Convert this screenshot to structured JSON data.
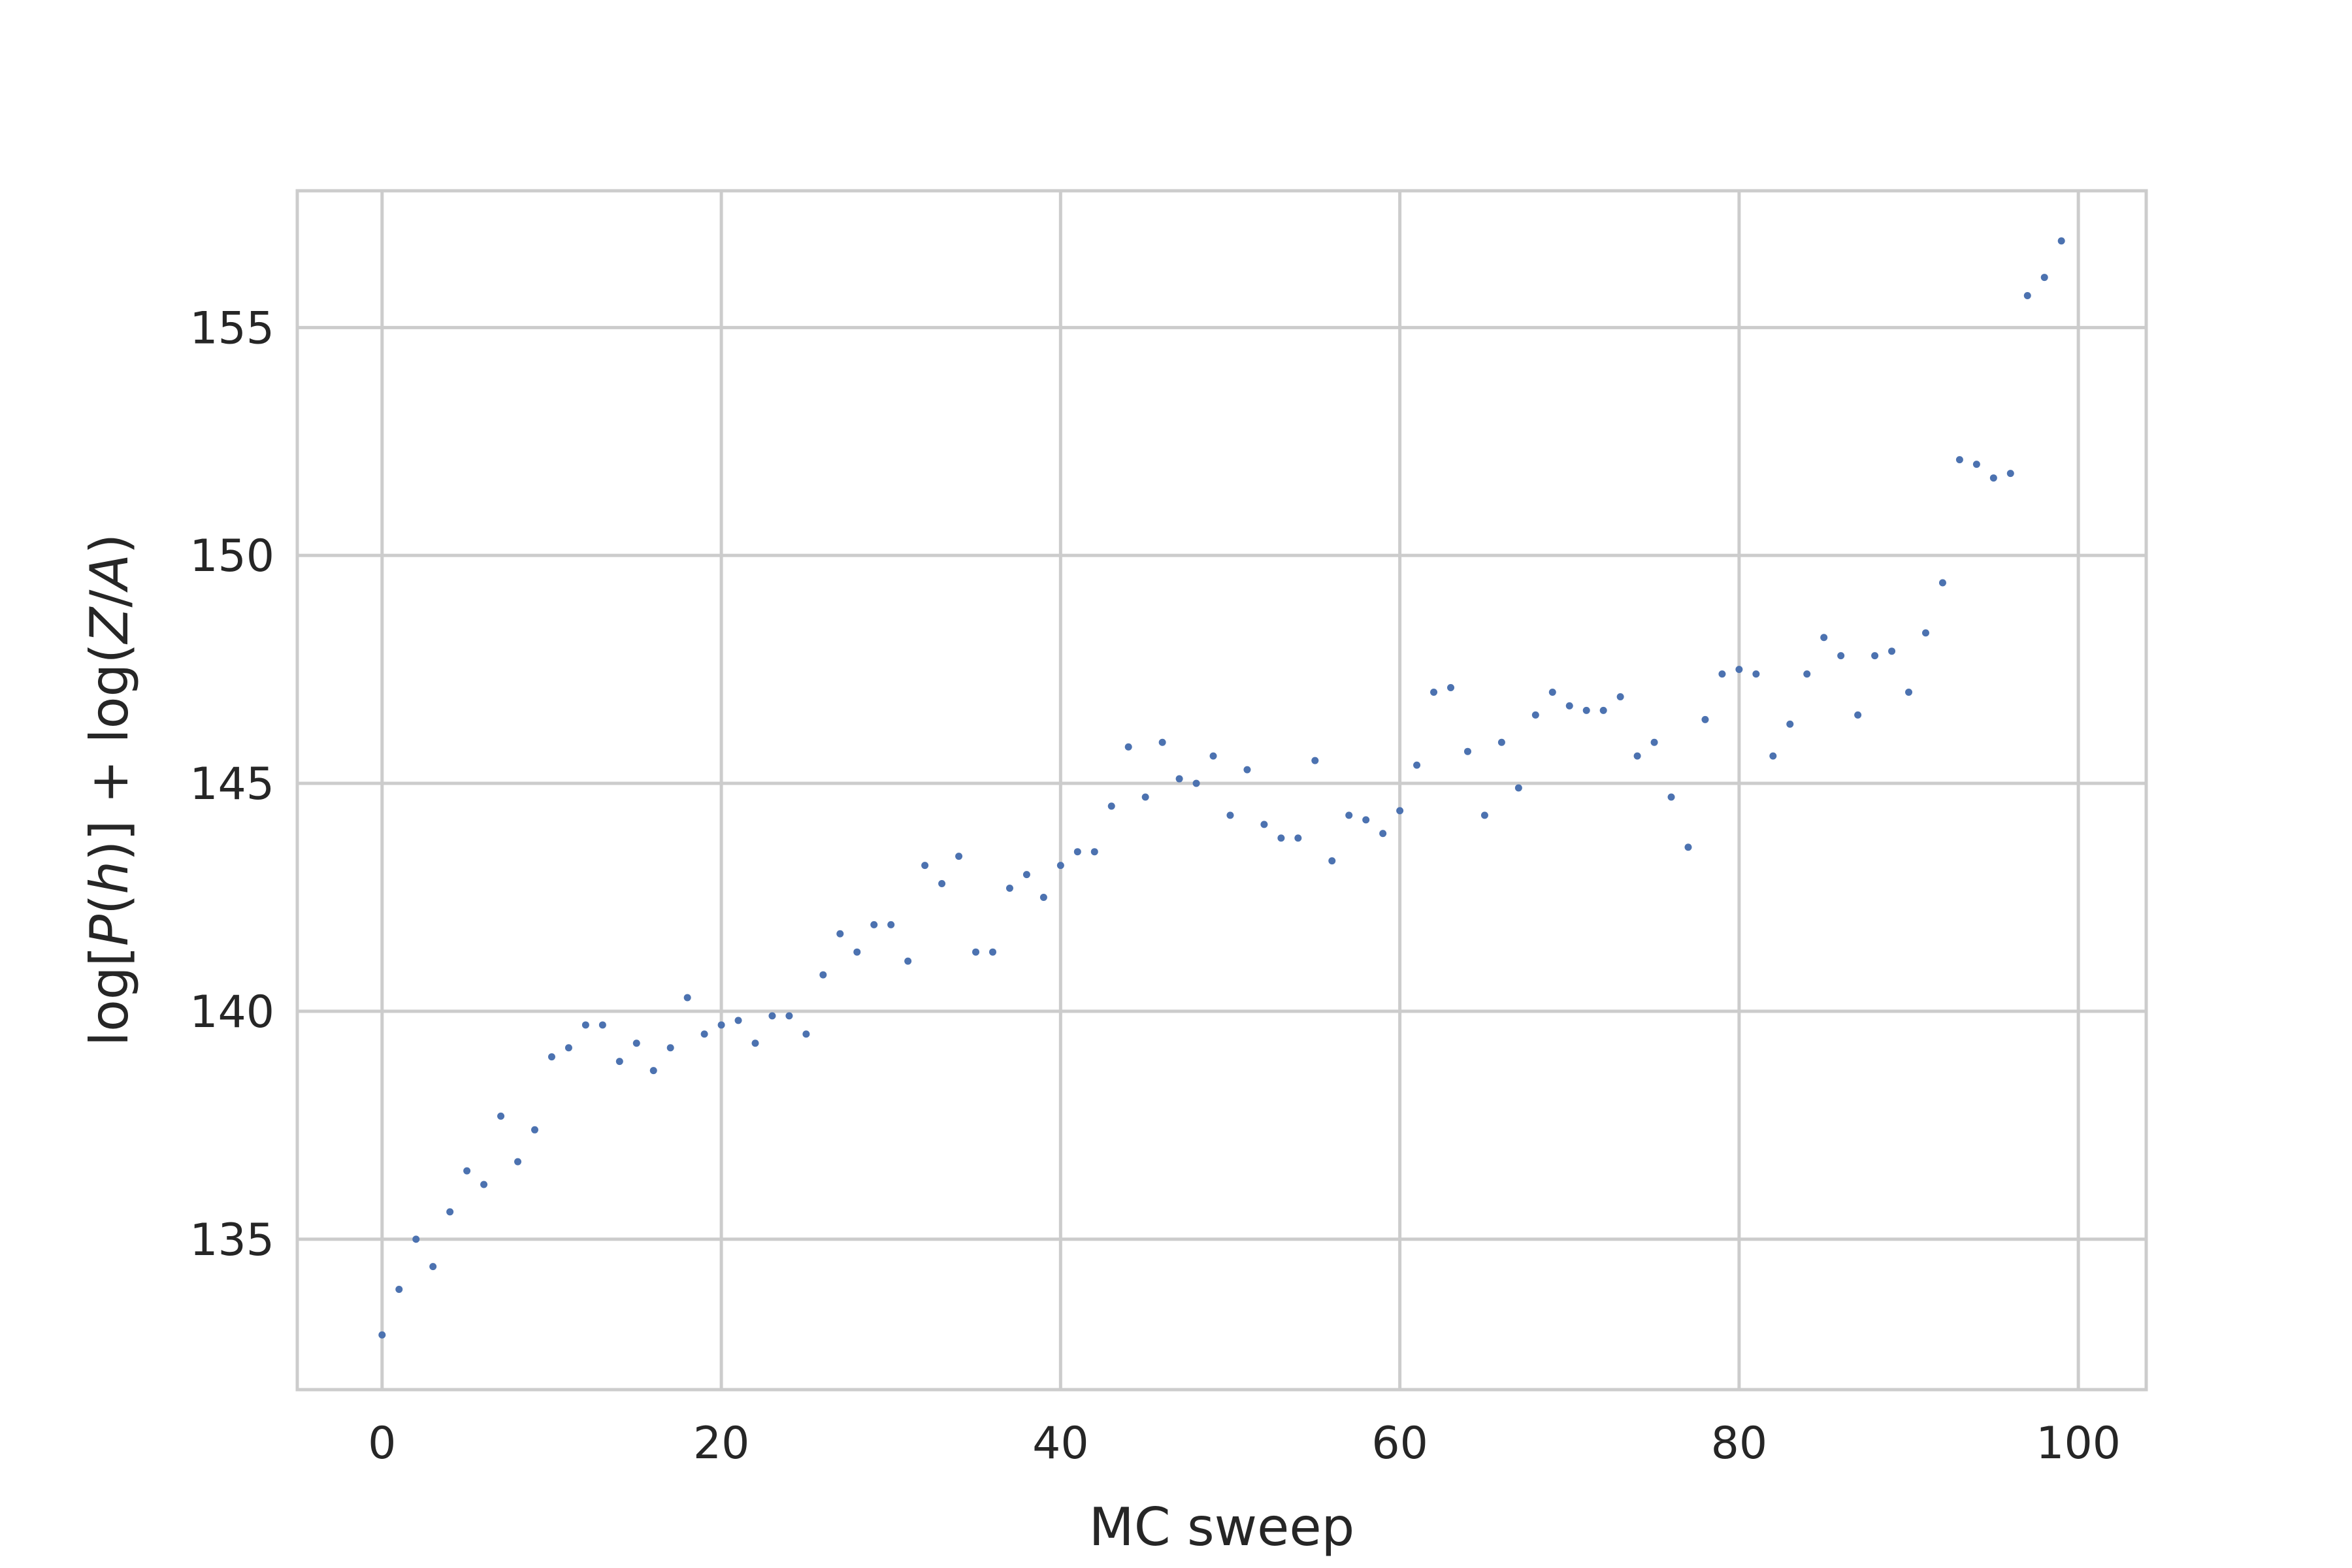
{
  "chart_data": {
    "type": "scatter",
    "title": "",
    "xlabel": "MC sweep",
    "ylabel": "log[P(h)] + log(Z/A)",
    "xlim": [
      -5,
      104
    ],
    "ylim": [
      131.7,
      158.0
    ],
    "x_ticks": [
      0,
      20,
      40,
      60,
      80,
      100
    ],
    "y_ticks": [
      135,
      140,
      145,
      150,
      155
    ],
    "grid": true,
    "point_color": "#4c72b0",
    "series": [
      {
        "x": [
          0,
          1,
          2,
          3,
          4,
          5,
          6,
          7,
          8,
          9,
          10,
          11,
          12,
          13,
          14,
          15,
          16,
          17,
          18,
          19,
          20,
          21,
          22,
          23,
          24,
          25,
          26,
          27,
          28,
          29,
          30,
          31,
          32,
          33,
          34,
          35,
          36,
          37,
          38,
          39,
          40,
          41,
          42,
          43,
          44,
          45,
          46,
          47,
          48,
          49,
          50,
          51,
          52,
          53,
          54,
          55,
          56,
          57,
          58,
          59,
          60,
          61,
          62,
          63,
          64,
          65,
          66,
          67,
          68,
          69,
          70,
          71,
          72,
          73,
          74,
          75,
          76,
          77,
          78,
          79,
          80,
          81,
          82,
          83,
          84,
          85,
          86,
          87,
          88,
          89,
          90,
          91,
          92,
          93,
          94,
          95,
          96,
          97,
          98,
          99
        ],
        "y": [
          132.9,
          133.9,
          135.0,
          134.4,
          135.6,
          136.5,
          136.2,
          137.7,
          136.7,
          137.4,
          139.0,
          139.2,
          139.7,
          139.7,
          138.9,
          139.3,
          138.7,
          139.2,
          140.3,
          139.5,
          139.7,
          139.8,
          139.3,
          139.9,
          139.9,
          139.5,
          140.8,
          141.7,
          141.3,
          141.9,
          141.9,
          141.1,
          143.2,
          142.8,
          143.4,
          141.3,
          141.3,
          142.7,
          143.0,
          142.5,
          143.2,
          143.5,
          143.5,
          144.5,
          145.8,
          144.7,
          145.9,
          145.1,
          145.0,
          145.6,
          144.3,
          145.3,
          144.1,
          143.8,
          143.8,
          145.5,
          143.3,
          144.3,
          144.2,
          143.9,
          144.4,
          145.4,
          147.0,
          147.1,
          145.7,
          144.3,
          145.9,
          144.9,
          146.5,
          147.0,
          146.7,
          146.6,
          146.6,
          146.9,
          145.6,
          145.9,
          144.7,
          143.6,
          146.4,
          147.4,
          147.5,
          147.4,
          145.6,
          146.3,
          147.4,
          148.2,
          147.8,
          146.5,
          147.8,
          147.9,
          147.0,
          148.3,
          149.4,
          152.1,
          152.0,
          151.7,
          151.8,
          155.7,
          156.1,
          156.9
        ]
      }
    ]
  }
}
